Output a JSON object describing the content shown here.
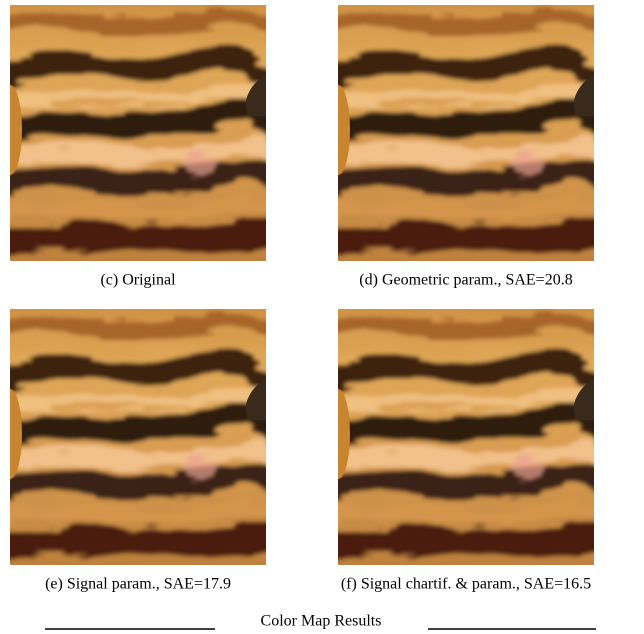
{
  "panels": [
    {
      "caption": "(c) Original"
    },
    {
      "caption": "(d) Geometric param., SAE=20.8"
    },
    {
      "caption": "(e) Signal param., SAE=17.9"
    },
    {
      "caption": "(f) Signal chartif. & param., SAE=16.5"
    }
  ],
  "figure_title": "Color Map Results"
}
